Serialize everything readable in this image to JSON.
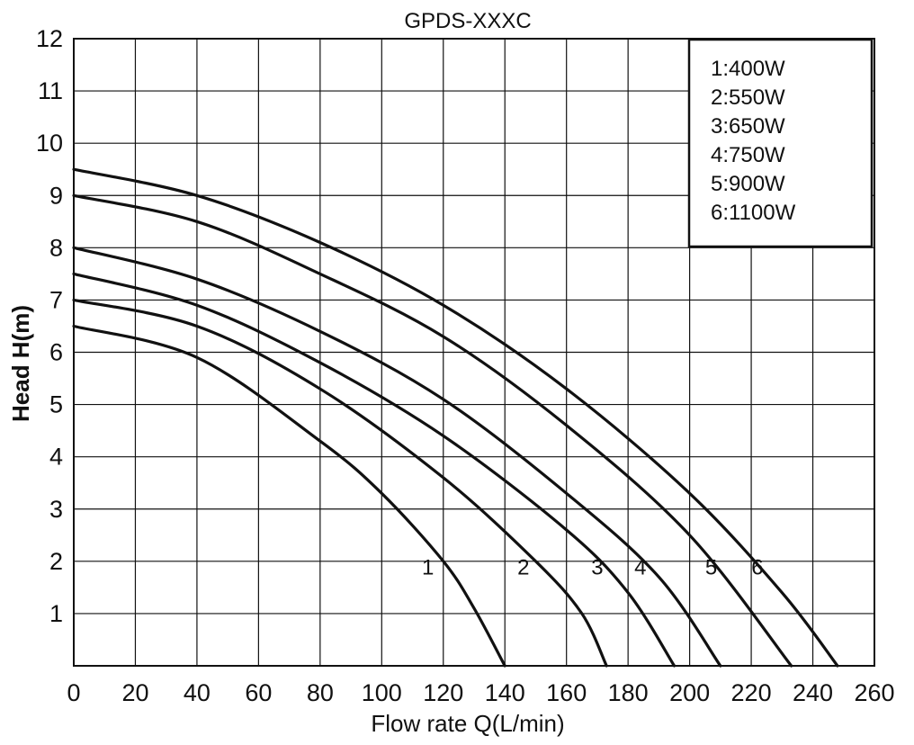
{
  "chart_data": {
    "type": "line",
    "title": "GPDS-XXXC",
    "xlabel": "Flow rate Q(L/min)",
    "ylabel": "Head H(m)",
    "xlim": [
      0,
      260
    ],
    "ylim": [
      0,
      12
    ],
    "xticks": [
      0,
      20,
      40,
      60,
      80,
      100,
      120,
      140,
      160,
      180,
      200,
      220,
      240,
      260
    ],
    "yticks": [
      1,
      2,
      3,
      4,
      5,
      6,
      7,
      8,
      9,
      10,
      11,
      12
    ],
    "grid": true,
    "legend_position": "top-right",
    "legend": [
      "1:400W",
      "2:550W",
      "3:650W",
      "4:750W",
      "5:900W",
      "6:1100W"
    ],
    "series": [
      {
        "name": "1",
        "x": [
          0,
          40,
          80,
          100,
          120,
          130,
          140
        ],
        "y": [
          6.5,
          5.9,
          4.3,
          3.3,
          2.0,
          1.1,
          0
        ]
      },
      {
        "name": "2",
        "x": [
          0,
          40,
          80,
          120,
          150,
          165,
          173
        ],
        "y": [
          7.0,
          6.5,
          5.3,
          3.6,
          2.0,
          1.0,
          0
        ]
      },
      {
        "name": "3",
        "x": [
          0,
          40,
          80,
          120,
          160,
          180,
          195
        ],
        "y": [
          7.5,
          6.9,
          5.8,
          4.4,
          2.6,
          1.4,
          0
        ]
      },
      {
        "name": "4",
        "x": [
          0,
          40,
          80,
          120,
          160,
          190,
          210
        ],
        "y": [
          8.0,
          7.4,
          6.4,
          5.1,
          3.3,
          1.7,
          0
        ]
      },
      {
        "name": "5",
        "x": [
          0,
          40,
          80,
          120,
          160,
          200,
          233
        ],
        "y": [
          9.0,
          8.5,
          7.5,
          6.3,
          4.6,
          2.5,
          0
        ]
      },
      {
        "name": "6",
        "x": [
          0,
          40,
          80,
          120,
          160,
          200,
          230,
          248
        ],
        "y": [
          9.5,
          9.0,
          8.1,
          6.9,
          5.3,
          3.3,
          1.4,
          0
        ]
      }
    ],
    "curve_labels": [
      {
        "text": "1",
        "x": 115,
        "y": 1.9
      },
      {
        "text": "2",
        "x": 146,
        "y": 1.9
      },
      {
        "text": "3",
        "x": 170,
        "y": 1.9
      },
      {
        "text": "4",
        "x": 184,
        "y": 1.9
      },
      {
        "text": "5",
        "x": 207,
        "y": 1.9
      },
      {
        "text": "6",
        "x": 222,
        "y": 1.9
      }
    ]
  }
}
